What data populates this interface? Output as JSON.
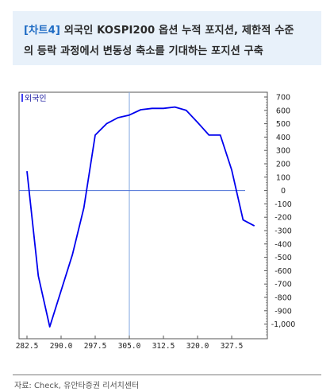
{
  "header": {
    "tag": "[차트4]",
    "line1_rest": " 외국인 KOSPI200 옵션 누적 포지션, 제한적 수준",
    "line2": "의 등락 과정에서 변동성 축소를 기대하는 포지션 구축"
  },
  "source": "자료: Check, 유안타증권 리서치센터",
  "colors": {
    "header_bg": "#e8f1fa",
    "tag": "#1f6cc4",
    "series": "#0000ee",
    "zero_line": "#4a6fd6",
    "cursor_line": "#7fa6e0"
  },
  "chart_data": {
    "type": "line",
    "legend": "외국인",
    "x_tick_labels": [
      "282.5",
      "290.0",
      "297.5",
      "305.0",
      "312.5",
      "320.0",
      "327.5"
    ],
    "y_tick_labels": [
      "700",
      "600",
      "500",
      "400",
      "300",
      "200",
      "100",
      "0",
      "-100",
      "-200",
      "-300",
      "-400",
      "-500",
      "-600",
      "-700",
      "-800",
      "-900",
      "-1,000"
    ],
    "xlim": [
      282.5,
      335.0
    ],
    "ylim": [
      -1050,
      700
    ],
    "y_axis_position": "right",
    "grid": false,
    "legend_position": "top-left",
    "cursor_x": 305.0,
    "reference_y": 0,
    "series": [
      {
        "x": [
          282.5,
          285.0,
          287.5,
          290.0,
          292.5,
          295.0,
          297.5,
          300.0,
          302.5,
          305.0,
          307.5,
          310.0,
          312.5,
          315.0,
          317.5,
          320.0,
          322.5,
          325.0,
          327.5,
          330.0,
          332.5
        ],
        "values": [
          145,
          -640,
          -1020,
          -750,
          -480,
          -130,
          415,
          500,
          545,
          565,
          605,
          615,
          615,
          625,
          600,
          510,
          415,
          415,
          155,
          -220,
          -265
        ]
      }
    ]
  }
}
